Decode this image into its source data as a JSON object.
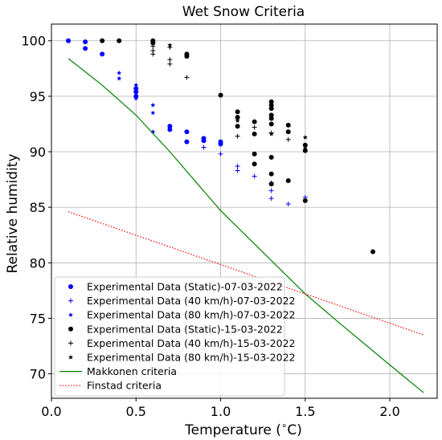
{
  "chart_data": {
    "type": "scatter",
    "title": "Wet Snow Criteria",
    "xlabel": "Temperature ($^\\circ$C)",
    "xlabel_parts": [
      "Temperature (",
      "∘",
      "C)"
    ],
    "ylabel": "Relative humidity",
    "xlim": [
      0.0,
      2.28
    ],
    "ylim": [
      67.8,
      101.5
    ],
    "xticks": [
      0.0,
      0.5,
      1.0,
      1.5,
      2.0
    ],
    "xtick_labels": [
      "0.0",
      "0.5",
      "1.0",
      "1.5",
      "2.0"
    ],
    "yticks": [
      70,
      75,
      80,
      85,
      90,
      95,
      100
    ],
    "ytick_labels": [
      "70",
      "75",
      "80",
      "85",
      "90",
      "95",
      "100"
    ],
    "grid": true,
    "legend_position": "lower-left",
    "series": [
      {
        "name": "Experimental Data (Static)-07-03-2022",
        "marker": "circle",
        "color": "#0000ff",
        "points": [
          [
            0.1,
            100
          ],
          [
            0.2,
            99.9
          ],
          [
            0.2,
            99.3
          ],
          [
            0.3,
            98.8
          ],
          [
            0.5,
            95.7
          ],
          [
            0.5,
            95.4
          ],
          [
            0.5,
            95.0
          ],
          [
            0.7,
            92.3
          ],
          [
            0.7,
            92.0
          ],
          [
            0.8,
            91.8
          ],
          [
            0.8,
            90.9
          ],
          [
            0.9,
            91.2
          ],
          [
            0.9,
            91.0
          ],
          [
            1.0,
            90.9
          ],
          [
            1.0,
            90.7
          ]
        ]
      },
      {
        "name": "Experimental Data (40 km/h)-07-03-2022",
        "marker": "plus",
        "color": "#0000ff",
        "points": [
          [
            0.9,
            90.4
          ],
          [
            1.0,
            89.8
          ],
          [
            1.1,
            88.7
          ],
          [
            1.1,
            88.3
          ],
          [
            1.2,
            87.8
          ],
          [
            1.3,
            87.2
          ],
          [
            1.3,
            86.5
          ],
          [
            1.3,
            85.8
          ],
          [
            1.4,
            85.3
          ],
          [
            1.5,
            85.9
          ]
        ]
      },
      {
        "name": "Experimental Data (80 km/h)-07-03-2022",
        "marker": "star",
        "color": "#0000ff",
        "points": [
          [
            0.4,
            97.1
          ],
          [
            0.4,
            96.6
          ],
          [
            0.5,
            96.0
          ],
          [
            0.5,
            94.8
          ],
          [
            0.6,
            94.2
          ],
          [
            0.6,
            93.5
          ],
          [
            0.6,
            91.8
          ]
        ]
      },
      {
        "name": "Experimental Data (Static)-15-03-2022",
        "marker": "circle",
        "color": "#000000",
        "points": [
          [
            0.3,
            100
          ],
          [
            0.4,
            100
          ],
          [
            0.6,
            100
          ],
          [
            0.6,
            99.8
          ],
          [
            0.8,
            98.8
          ],
          [
            0.8,
            98.6
          ],
          [
            1.0,
            95.1
          ],
          [
            1.1,
            93.6
          ],
          [
            1.1,
            93.1
          ],
          [
            1.1,
            92.3
          ],
          [
            1.2,
            92.7
          ],
          [
            1.2,
            91.6
          ],
          [
            1.2,
            89.8
          ],
          [
            1.2,
            88.9
          ],
          [
            1.3,
            94.5
          ],
          [
            1.3,
            94.2
          ],
          [
            1.3,
            93.9
          ],
          [
            1.3,
            93.3
          ],
          [
            1.3,
            93.0
          ],
          [
            1.3,
            92.5
          ],
          [
            1.3,
            89.5
          ],
          [
            1.3,
            88.0
          ],
          [
            1.3,
            87.1
          ],
          [
            1.4,
            92.4
          ],
          [
            1.4,
            91.8
          ],
          [
            1.4,
            87.4
          ],
          [
            1.5,
            90.6
          ],
          [
            1.5,
            90.1
          ],
          [
            1.5,
            85.6
          ],
          [
            1.9,
            81.0
          ]
        ]
      },
      {
        "name": "Experimental Data (40 km/h)-15-03-2022",
        "marker": "plus",
        "color": "#000000",
        "points": [
          [
            0.6,
            99.5
          ],
          [
            0.6,
            99.1
          ],
          [
            0.6,
            98.8
          ],
          [
            0.7,
            99.4
          ],
          [
            0.7,
            98.3
          ],
          [
            0.7,
            97.9
          ],
          [
            0.8,
            96.7
          ],
          [
            1.1,
            91.4
          ],
          [
            1.2,
            92.2
          ],
          [
            1.3,
            91.7
          ],
          [
            1.4,
            91.1
          ]
        ]
      },
      {
        "name": "Experimental Data (80 km/h)-15-03-2022",
        "marker": "star",
        "color": "#000000",
        "points": [
          [
            0.7,
            99.6
          ],
          [
            1.1,
            92.8
          ],
          [
            1.3,
            91.6
          ],
          [
            1.5,
            91.3
          ],
          [
            1.5,
            90.3
          ]
        ]
      },
      {
        "name": "Makkonen criteria",
        "marker": "line",
        "color": "#008000",
        "points": [
          [
            0.1,
            98.4
          ],
          [
            0.3,
            96.0
          ],
          [
            0.5,
            93.3
          ],
          [
            0.7,
            90.0
          ],
          [
            1.0,
            84.7
          ],
          [
            1.2,
            81.7
          ],
          [
            1.5,
            77.2
          ],
          [
            1.7,
            74.6
          ],
          [
            2.0,
            70.8
          ],
          [
            2.2,
            68.3
          ]
        ]
      },
      {
        "name": "Finstad criteria",
        "marker": "dotted-line",
        "color": "#ff0000",
        "points": [
          [
            0.1,
            84.6
          ],
          [
            2.2,
            73.5
          ]
        ]
      }
    ]
  }
}
